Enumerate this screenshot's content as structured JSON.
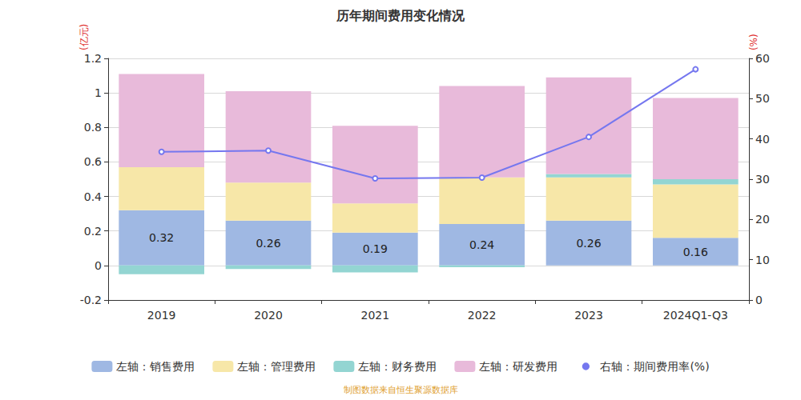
{
  "chart_data": {
    "type": "bar",
    "title": "历年期间费用变化情况",
    "y_label": "(亿元)",
    "y2_label": "(%)",
    "footer": "制图数据来自恒生聚源数据库",
    "categories": [
      "2019",
      "2020",
      "2021",
      "2022",
      "2023",
      "2024Q1-Q3"
    ],
    "stacked": true,
    "grid": true,
    "legend": "bottom",
    "ylim": [
      -0.2,
      1.2
    ],
    "yticks": [
      -0.2,
      0,
      0.2,
      0.4,
      0.6,
      0.8,
      1,
      1.2
    ],
    "y2lim": [
      0,
      60
    ],
    "y2ticks": [
      0,
      10,
      20,
      30,
      40,
      50,
      60
    ],
    "series": [
      {
        "name": "左轴：销售费用",
        "type": "bar",
        "color": "#9fb8e3",
        "data_labels": true,
        "values": [
          0.32,
          0.26,
          0.19,
          0.24,
          0.26,
          0.16
        ]
      },
      {
        "name": "左轴：管理费用",
        "type": "bar",
        "color": "#f7e7a8",
        "values": [
          0.25,
          0.22,
          0.17,
          0.27,
          0.25,
          0.31
        ]
      },
      {
        "name": "左轴：财务费用",
        "type": "bar",
        "color": "#93d5d2",
        "values": [
          -0.05,
          -0.02,
          -0.04,
          -0.01,
          0.02,
          0.03
        ]
      },
      {
        "name": "左轴：研发费用",
        "type": "bar",
        "color": "#e8bada",
        "values": [
          0.54,
          0.53,
          0.45,
          0.53,
          0.56,
          0.47
        ]
      },
      {
        "name": "右轴：期间费用率(%)",
        "type": "line",
        "axis": "y2",
        "color": "#7577ef",
        "marker": "circle",
        "values": [
          36.8,
          37.1,
          30.2,
          30.4,
          40.5,
          57.3
        ]
      }
    ]
  }
}
